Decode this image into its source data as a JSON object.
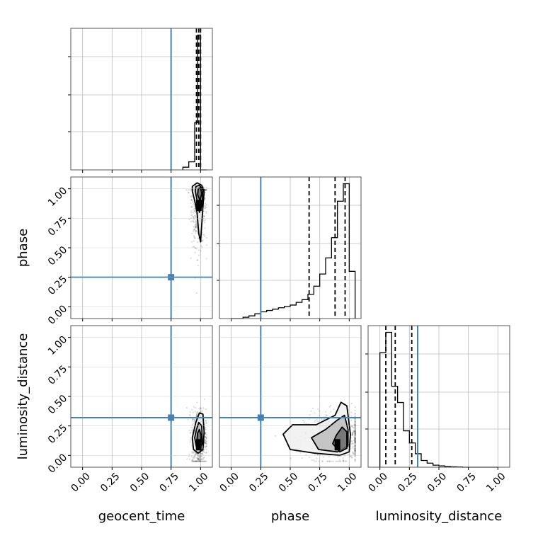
{
  "chart_data": {
    "type": "corner",
    "parameters": [
      "geocent_time",
      "phase",
      "luminosity_distance"
    ],
    "axis_labels": {
      "geocent_time": "geocent_time",
      "phase": "phase",
      "luminosity_distance": "luminosity_distance"
    },
    "tick_values": [
      0.0,
      0.25,
      0.5,
      0.75,
      1.0
    ],
    "tick_labels": [
      "0.00",
      "0.25",
      "0.50",
      "0.75",
      "1.00"
    ],
    "xlim": [
      -0.1,
      1.1
    ],
    "grid": true,
    "colors": {
      "truth": "#4682b4",
      "hist": "#000000",
      "quantile": "#000000",
      "grid": "#bbbbbb"
    },
    "truths": {
      "geocent_time": 0.75,
      "phase": 0.25,
      "luminosity_distance": 0.32
    },
    "histograms": {
      "geocent_time": {
        "bin_edges": [
          0.85,
          0.9,
          0.95,
          0.975,
          1.0,
          1.05
        ],
        "heights": [
          0.02,
          0.06,
          0.35,
          1.0,
          0.0
        ],
        "quantiles": [
          0.965,
          0.985,
          1.0
        ]
      },
      "phase": {
        "bin_edges": [
          0.0,
          0.05,
          0.1,
          0.15,
          0.2,
          0.25,
          0.3,
          0.35,
          0.4,
          0.45,
          0.5,
          0.55,
          0.6,
          0.65,
          0.7,
          0.75,
          0.8,
          0.85,
          0.9,
          0.95,
          1.0,
          1.05
        ],
        "heights": [
          0.0,
          0.0,
          0.01,
          0.02,
          0.035,
          0.05,
          0.06,
          0.07,
          0.08,
          0.09,
          0.1,
          0.12,
          0.14,
          0.18,
          0.24,
          0.33,
          0.45,
          0.6,
          0.87,
          1.0,
          0.35
        ],
        "quantiles": [
          0.66,
          0.88,
          0.965
        ]
      },
      "luminosity_distance": {
        "bin_edges": [
          0.0,
          0.05,
          0.1,
          0.15,
          0.2,
          0.25,
          0.3,
          0.35,
          0.4,
          0.45,
          0.5,
          0.55,
          0.6,
          0.65,
          0.7,
          0.75,
          0.8,
          0.85,
          0.9,
          0.95,
          1.0
        ],
        "heights": [
          0.85,
          1.0,
          0.6,
          0.48,
          0.27,
          0.18,
          0.1,
          0.05,
          0.03,
          0.015,
          0.01,
          0.005,
          0.003,
          0.002,
          0.0,
          0.0,
          0.0,
          0.0,
          0.0,
          0.0
        ],
        "quantiles": [
          0.05,
          0.13,
          0.27
        ]
      }
    },
    "density_regions": [
      {
        "x": "geocent_time",
        "y": "phase",
        "center": [
          0.985,
          0.92
        ],
        "spread": [
          0.03,
          0.2
        ],
        "contours": [
          [
            [
              0.93,
              0.98
            ],
            [
              0.93,
              1.02
            ],
            [
              0.97,
              1.05
            ],
            [
              1.01,
              1.03
            ],
            [
              1.03,
              0.97
            ],
            [
              1.02,
              0.85
            ],
            [
              1.01,
              0.7
            ],
            [
              1.0,
              0.55
            ],
            [
              0.985,
              0.62
            ],
            [
              0.97,
              0.8
            ],
            [
              0.95,
              0.9
            ]
          ],
          [
            [
              0.955,
              0.98
            ],
            [
              0.96,
              1.02
            ],
            [
              0.99,
              1.03
            ],
            [
              1.02,
              0.99
            ],
            [
              1.01,
              0.85
            ],
            [
              0.99,
              0.8
            ],
            [
              0.975,
              0.88
            ]
          ],
          [
            [
              0.975,
              0.95
            ],
            [
              0.98,
              1.0
            ],
            [
              1.0,
              1.01
            ],
            [
              1.01,
              0.96
            ],
            [
              0.995,
              0.9
            ]
          ]
        ]
      },
      {
        "x": "phase",
        "y": "luminosity_distance",
        "center": [
          0.9,
          0.15
        ],
        "spread": [
          0.14,
          0.1
        ],
        "contours": [
          [
            [
              0.44,
              0.18
            ],
            [
              0.5,
              0.05
            ],
            [
              0.7,
              0.02
            ],
            [
              0.92,
              0.0
            ],
            [
              1.0,
              0.03
            ],
            [
              1.01,
              0.18
            ],
            [
              0.98,
              0.42
            ],
            [
              0.93,
              0.45
            ],
            [
              0.88,
              0.34
            ],
            [
              0.72,
              0.26
            ],
            [
              0.52,
              0.26
            ]
          ],
          [
            [
              0.68,
              0.15
            ],
            [
              0.74,
              0.05
            ],
            [
              0.9,
              0.03
            ],
            [
              0.99,
              0.08
            ],
            [
              0.99,
              0.22
            ],
            [
              0.96,
              0.34
            ],
            [
              0.9,
              0.3
            ],
            [
              0.8,
              0.22
            ]
          ],
          [
            [
              0.86,
              0.1
            ],
            [
              0.92,
              0.03
            ],
            [
              0.98,
              0.06
            ],
            [
              0.98,
              0.2
            ],
            [
              0.94,
              0.24
            ],
            [
              0.89,
              0.17
            ]
          ]
        ]
      },
      {
        "x": "geocent_time",
        "y": "luminosity_distance",
        "center": [
          0.985,
          0.15
        ],
        "spread": [
          0.03,
          0.12
        ],
        "contours": [
          [
            [
              0.93,
              0.15
            ],
            [
              0.94,
              0.05
            ],
            [
              0.98,
              0.02
            ],
            [
              1.02,
              0.05
            ],
            [
              1.03,
              0.2
            ],
            [
              1.02,
              0.35
            ],
            [
              0.99,
              0.36
            ],
            [
              0.96,
              0.28
            ]
          ],
          [
            [
              0.95,
              0.15
            ],
            [
              0.965,
              0.07
            ],
            [
              0.99,
              0.05
            ],
            [
              1.015,
              0.1
            ],
            [
              1.01,
              0.25
            ],
            [
              0.985,
              0.28
            ],
            [
              0.965,
              0.22
            ]
          ],
          [
            [
              0.97,
              0.14
            ],
            [
              0.98,
              0.08
            ],
            [
              1.0,
              0.08
            ],
            [
              1.005,
              0.17
            ],
            [
              0.99,
              0.22
            ],
            [
              0.975,
              0.19
            ]
          ]
        ]
      }
    ]
  }
}
